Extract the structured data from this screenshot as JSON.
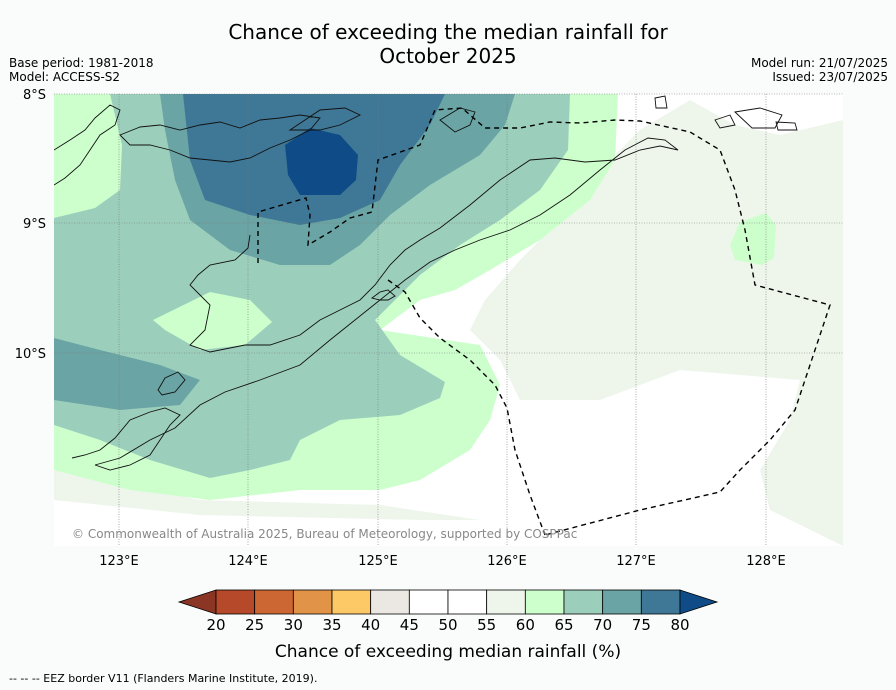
{
  "header": {
    "title_line1": "Chance of exceeding the median rainfall for",
    "title_line2": "October 2025",
    "base_period": "Base period: 1981-2018",
    "model": "Model: ACCESS-S2",
    "model_run": "Model run: 21/07/2025",
    "issued": "Issued: 23/07/2025"
  },
  "map": {
    "lat_labels": [
      "8°S",
      "9°S",
      "10°S"
    ],
    "lon_labels": [
      "123°E",
      "124°E",
      "125°E",
      "126°E",
      "127°E",
      "128°E"
    ],
    "copyright": "© Commonwealth of Australia 2025, Bureau of Meteorology, supported by COSPPac"
  },
  "colorbar": {
    "labels": [
      "20",
      "25",
      "30",
      "35",
      "40",
      "45",
      "50",
      "55",
      "60",
      "65",
      "70",
      "75",
      "80"
    ],
    "colors": [
      "#8b3525",
      "#b5492a",
      "#cc6632",
      "#e19448",
      "#fdc866",
      "#ebe8e3",
      "#ffffff",
      "#ffffff",
      "#eef6ec",
      "#ccffcc",
      "#9ccfbb",
      "#6aa4a4",
      "#3f7896",
      "#0f4c87"
    ],
    "title": "Chance of exceeding median rainfall (%)"
  },
  "footnote": "--  --  -- EEZ border V11 (Flanders Marine Institute, 2019)."
}
